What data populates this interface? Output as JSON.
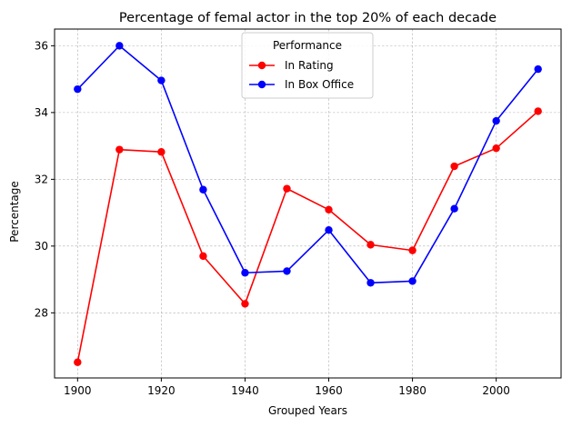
{
  "chart_data": {
    "type": "line",
    "title": "Percentage of femal actor in the top 20% of each decade",
    "xlabel": "Grouped Years",
    "ylabel": "Percentage",
    "x": [
      1900,
      1910,
      1920,
      1930,
      1940,
      1950,
      1960,
      1970,
      1980,
      1990,
      2000,
      2010
    ],
    "xticks": [
      1900,
      1920,
      1940,
      1960,
      1980,
      2000
    ],
    "yticks": [
      28,
      30,
      32,
      34,
      36
    ],
    "xlim": [
      1894.5,
      2015.5
    ],
    "ylim": [
      26.05,
      36.5
    ],
    "grid": true,
    "legend": {
      "title": "Performance",
      "placement": "top-center"
    },
    "series": [
      {
        "name": "In Rating",
        "color": "#ff0000",
        "values": [
          26.52,
          32.89,
          32.82,
          29.7,
          28.27,
          31.72,
          31.09,
          30.04,
          29.87,
          32.39,
          32.93,
          34.04
        ]
      },
      {
        "name": "In Box Office",
        "color": "#0000ff",
        "values": [
          34.7,
          36.0,
          34.96,
          31.69,
          29.2,
          29.25,
          30.48,
          28.9,
          28.95,
          31.12,
          33.75,
          35.3
        ]
      }
    ]
  }
}
